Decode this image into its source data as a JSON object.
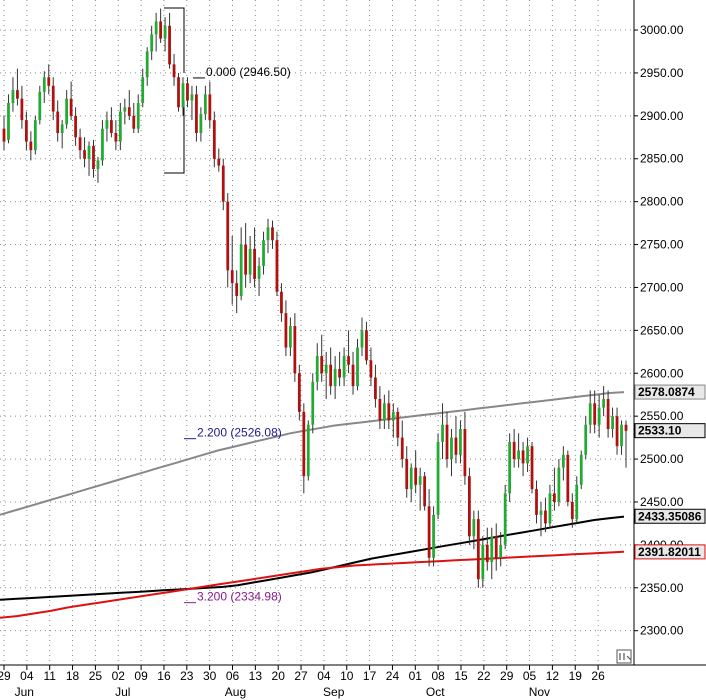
{
  "chart_data": {
    "type": "candlestick",
    "y_ticks": [
      "2300.00",
      "2350.00",
      "2400.00",
      "2450.00",
      "2500.00",
      "2550.00",
      "2600.00",
      "2650.00",
      "2700.00",
      "2750.00",
      "2800.00",
      "2850.00",
      "2900.00",
      "2950.00",
      "3000.00"
    ],
    "y_values": [
      2300,
      2350,
      2400,
      2450,
      2500,
      2550,
      2600,
      2650,
      2700,
      2750,
      2800,
      2850,
      2900,
      2950,
      3000
    ],
    "ylim": [
      2260,
      3035
    ],
    "grid": true,
    "x_day_labels": [
      "29",
      "04",
      "11",
      "18",
      "25",
      "02",
      "09",
      "16",
      "23",
      "30",
      "06",
      "13",
      "20",
      "27",
      "04",
      "10",
      "17",
      "24",
      "01",
      "08",
      "15",
      "22",
      "29",
      "05",
      "12",
      "19",
      "26"
    ],
    "x_month_labels": [
      {
        "label": "Jun",
        "week_index": 0.2
      },
      {
        "label": "Jul",
        "week_index": 4.6
      },
      {
        "label": "Aug",
        "week_index": 9.4
      },
      {
        "label": "Sep",
        "week_index": 13.7
      },
      {
        "label": "Oct",
        "week_index": 18.2
      },
      {
        "label": "Nov",
        "week_index": 22.7
      }
    ],
    "candles": [
      {
        "o": 2885,
        "h": 2900,
        "l": 2860,
        "c": 2870
      },
      {
        "o": 2872,
        "h": 2925,
        "l": 2868,
        "c": 2915
      },
      {
        "o": 2915,
        "h": 2945,
        "l": 2905,
        "c": 2930
      },
      {
        "o": 2930,
        "h": 2955,
        "l": 2912,
        "c": 2920
      },
      {
        "o": 2920,
        "h": 2935,
        "l": 2885,
        "c": 2895
      },
      {
        "o": 2895,
        "h": 2905,
        "l": 2860,
        "c": 2870
      },
      {
        "o": 2870,
        "h": 2882,
        "l": 2848,
        "c": 2860
      },
      {
        "o": 2860,
        "h": 2900,
        "l": 2855,
        "c": 2895
      },
      {
        "o": 2895,
        "h": 2935,
        "l": 2890,
        "c": 2928
      },
      {
        "o": 2928,
        "h": 2952,
        "l": 2915,
        "c": 2945
      },
      {
        "o": 2945,
        "h": 2960,
        "l": 2925,
        "c": 2935
      },
      {
        "o": 2935,
        "h": 2945,
        "l": 2895,
        "c": 2905
      },
      {
        "o": 2905,
        "h": 2918,
        "l": 2870,
        "c": 2880
      },
      {
        "o": 2880,
        "h": 2895,
        "l": 2862,
        "c": 2890
      },
      {
        "o": 2890,
        "h": 2930,
        "l": 2885,
        "c": 2920
      },
      {
        "o": 2920,
        "h": 2940,
        "l": 2895,
        "c": 2900
      },
      {
        "o": 2900,
        "h": 2910,
        "l": 2865,
        "c": 2875
      },
      {
        "o": 2875,
        "h": 2885,
        "l": 2850,
        "c": 2860
      },
      {
        "o": 2860,
        "h": 2875,
        "l": 2840,
        "c": 2850
      },
      {
        "o": 2850,
        "h": 2870,
        "l": 2830,
        "c": 2865
      },
      {
        "o": 2865,
        "h": 2872,
        "l": 2828,
        "c": 2838
      },
      {
        "o": 2838,
        "h": 2852,
        "l": 2822,
        "c": 2848
      },
      {
        "o": 2848,
        "h": 2895,
        "l": 2842,
        "c": 2885
      },
      {
        "o": 2885,
        "h": 2905,
        "l": 2870,
        "c": 2895
      },
      {
        "o": 2895,
        "h": 2910,
        "l": 2875,
        "c": 2880
      },
      {
        "o": 2880,
        "h": 2895,
        "l": 2860,
        "c": 2870
      },
      {
        "o": 2870,
        "h": 2915,
        "l": 2860,
        "c": 2905
      },
      {
        "o": 2905,
        "h": 2920,
        "l": 2890,
        "c": 2910
      },
      {
        "o": 2910,
        "h": 2930,
        "l": 2895,
        "c": 2900
      },
      {
        "o": 2900,
        "h": 2915,
        "l": 2880,
        "c": 2885
      },
      {
        "o": 2885,
        "h": 2925,
        "l": 2880,
        "c": 2915
      },
      {
        "o": 2915,
        "h": 2955,
        "l": 2910,
        "c": 2945
      },
      {
        "o": 2945,
        "h": 2980,
        "l": 2935,
        "c": 2975
      },
      {
        "o": 2975,
        "h": 3005,
        "l": 2965,
        "c": 2995
      },
      {
        "o": 2995,
        "h": 3020,
        "l": 2975,
        "c": 3010
      },
      {
        "o": 3010,
        "h": 3025,
        "l": 2985,
        "c": 2990
      },
      {
        "o": 2990,
        "h": 3015,
        "l": 2975,
        "c": 3005
      },
      {
        "o": 3005,
        "h": 3020,
        "l": 2955,
        "c": 2960
      },
      {
        "o": 2960,
        "h": 2972,
        "l": 2935,
        "c": 2945
      },
      {
        "o": 2945,
        "h": 2950,
        "l": 2905,
        "c": 2910
      },
      {
        "o": 2910,
        "h": 2945,
        "l": 2900,
        "c": 2938
      },
      {
        "o": 2938,
        "h": 2945,
        "l": 2910,
        "c": 2918
      },
      {
        "o": 2918,
        "h": 2935,
        "l": 2895,
        "c": 2925
      },
      {
        "o": 2925,
        "h": 2935,
        "l": 2870,
        "c": 2880
      },
      {
        "o": 2880,
        "h": 2910,
        "l": 2870,
        "c": 2902
      },
      {
        "o": 2902,
        "h": 2935,
        "l": 2895,
        "c": 2925
      },
      {
        "o": 2925,
        "h": 2940,
        "l": 2885,
        "c": 2895
      },
      {
        "o": 2895,
        "h": 2905,
        "l": 2840,
        "c": 2850
      },
      {
        "o": 2850,
        "h": 2862,
        "l": 2835,
        "c": 2842
      },
      {
        "o": 2842,
        "h": 2850,
        "l": 2790,
        "c": 2800
      },
      {
        "o": 2800,
        "h": 2810,
        "l": 2700,
        "c": 2720
      },
      {
        "o": 2720,
        "h": 2760,
        "l": 2680,
        "c": 2705
      },
      {
        "o": 2705,
        "h": 2720,
        "l": 2670,
        "c": 2690
      },
      {
        "o": 2690,
        "h": 2770,
        "l": 2685,
        "c": 2750
      },
      {
        "o": 2750,
        "h": 2775,
        "l": 2700,
        "c": 2715
      },
      {
        "o": 2715,
        "h": 2760,
        "l": 2705,
        "c": 2745
      },
      {
        "o": 2745,
        "h": 2770,
        "l": 2700,
        "c": 2710
      },
      {
        "o": 2710,
        "h": 2735,
        "l": 2690,
        "c": 2725
      },
      {
        "o": 2725,
        "h": 2765,
        "l": 2715,
        "c": 2755
      },
      {
        "o": 2755,
        "h": 2780,
        "l": 2740,
        "c": 2770
      },
      {
        "o": 2770,
        "h": 2778,
        "l": 2745,
        "c": 2755
      },
      {
        "o": 2755,
        "h": 2765,
        "l": 2690,
        "c": 2695
      },
      {
        "o": 2695,
        "h": 2705,
        "l": 2660,
        "c": 2670
      },
      {
        "o": 2670,
        "h": 2685,
        "l": 2620,
        "c": 2630
      },
      {
        "o": 2630,
        "h": 2665,
        "l": 2620,
        "c": 2655
      },
      {
        "o": 2655,
        "h": 2670,
        "l": 2590,
        "c": 2600
      },
      {
        "o": 2600,
        "h": 2610,
        "l": 2545,
        "c": 2555
      },
      {
        "o": 2555,
        "h": 2565,
        "l": 2460,
        "c": 2480
      },
      {
        "o": 2480,
        "h": 2545,
        "l": 2475,
        "c": 2540
      },
      {
        "o": 2540,
        "h": 2600,
        "l": 2530,
        "c": 2590
      },
      {
        "o": 2590,
        "h": 2635,
        "l": 2580,
        "c": 2620
      },
      {
        "o": 2620,
        "h": 2645,
        "l": 2590,
        "c": 2600
      },
      {
        "o": 2600,
        "h": 2625,
        "l": 2570,
        "c": 2610
      },
      {
        "o": 2610,
        "h": 2630,
        "l": 2575,
        "c": 2585
      },
      {
        "o": 2585,
        "h": 2620,
        "l": 2570,
        "c": 2605
      },
      {
        "o": 2605,
        "h": 2625,
        "l": 2585,
        "c": 2595
      },
      {
        "o": 2595,
        "h": 2630,
        "l": 2585,
        "c": 2620
      },
      {
        "o": 2620,
        "h": 2650,
        "l": 2600,
        "c": 2610
      },
      {
        "o": 2610,
        "h": 2625,
        "l": 2575,
        "c": 2585
      },
      {
        "o": 2585,
        "h": 2640,
        "l": 2580,
        "c": 2630
      },
      {
        "o": 2630,
        "h": 2665,
        "l": 2620,
        "c": 2650
      },
      {
        "o": 2650,
        "h": 2660,
        "l": 2610,
        "c": 2615
      },
      {
        "o": 2615,
        "h": 2630,
        "l": 2585,
        "c": 2595
      },
      {
        "o": 2595,
        "h": 2610,
        "l": 2560,
        "c": 2570
      },
      {
        "o": 2570,
        "h": 2585,
        "l": 2535,
        "c": 2545
      },
      {
        "o": 2545,
        "h": 2575,
        "l": 2535,
        "c": 2565
      },
      {
        "o": 2565,
        "h": 2580,
        "l": 2535,
        "c": 2545
      },
      {
        "o": 2545,
        "h": 2565,
        "l": 2525,
        "c": 2555
      },
      {
        "o": 2555,
        "h": 2560,
        "l": 2515,
        "c": 2525
      },
      {
        "o": 2525,
        "h": 2545,
        "l": 2490,
        "c": 2500
      },
      {
        "o": 2500,
        "h": 2515,
        "l": 2455,
        "c": 2465
      },
      {
        "o": 2465,
        "h": 2495,
        "l": 2450,
        "c": 2490
      },
      {
        "o": 2490,
        "h": 2510,
        "l": 2460,
        "c": 2470
      },
      {
        "o": 2470,
        "h": 2490,
        "l": 2440,
        "c": 2480
      },
      {
        "o": 2480,
        "h": 2485,
        "l": 2440,
        "c": 2445
      },
      {
        "o": 2445,
        "h": 2465,
        "l": 2375,
        "c": 2385
      },
      {
        "o": 2385,
        "h": 2445,
        "l": 2375,
        "c": 2435
      },
      {
        "o": 2435,
        "h": 2530,
        "l": 2430,
        "c": 2520
      },
      {
        "o": 2520,
        "h": 2565,
        "l": 2500,
        "c": 2540
      },
      {
        "o": 2540,
        "h": 2555,
        "l": 2490,
        "c": 2500
      },
      {
        "o": 2500,
        "h": 2535,
        "l": 2480,
        "c": 2525
      },
      {
        "o": 2525,
        "h": 2550,
        "l": 2495,
        "c": 2505
      },
      {
        "o": 2505,
        "h": 2545,
        "l": 2495,
        "c": 2535
      },
      {
        "o": 2535,
        "h": 2555,
        "l": 2470,
        "c": 2480
      },
      {
        "o": 2480,
        "h": 2490,
        "l": 2400,
        "c": 2410
      },
      {
        "o": 2410,
        "h": 2440,
        "l": 2395,
        "c": 2430
      },
      {
        "o": 2430,
        "h": 2440,
        "l": 2350,
        "c": 2360
      },
      {
        "o": 2360,
        "h": 2410,
        "l": 2350,
        "c": 2400
      },
      {
        "o": 2400,
        "h": 2420,
        "l": 2370,
        "c": 2380
      },
      {
        "o": 2380,
        "h": 2420,
        "l": 2360,
        "c": 2410
      },
      {
        "o": 2410,
        "h": 2425,
        "l": 2370,
        "c": 2385
      },
      {
        "o": 2385,
        "h": 2415,
        "l": 2375,
        "c": 2400
      },
      {
        "o": 2400,
        "h": 2470,
        "l": 2395,
        "c": 2460
      },
      {
        "o": 2460,
        "h": 2530,
        "l": 2450,
        "c": 2520
      },
      {
        "o": 2520,
        "h": 2535,
        "l": 2490,
        "c": 2500
      },
      {
        "o": 2500,
        "h": 2530,
        "l": 2490,
        "c": 2510
      },
      {
        "o": 2510,
        "h": 2520,
        "l": 2480,
        "c": 2495
      },
      {
        "o": 2495,
        "h": 2525,
        "l": 2485,
        "c": 2515
      },
      {
        "o": 2515,
        "h": 2520,
        "l": 2460,
        "c": 2465
      },
      {
        "o": 2465,
        "h": 2475,
        "l": 2425,
        "c": 2435
      },
      {
        "o": 2435,
        "h": 2450,
        "l": 2410,
        "c": 2440
      },
      {
        "o": 2440,
        "h": 2455,
        "l": 2415,
        "c": 2425
      },
      {
        "o": 2425,
        "h": 2470,
        "l": 2420,
        "c": 2460
      },
      {
        "o": 2460,
        "h": 2490,
        "l": 2440,
        "c": 2450
      },
      {
        "o": 2450,
        "h": 2500,
        "l": 2445,
        "c": 2490
      },
      {
        "o": 2490,
        "h": 2515,
        "l": 2475,
        "c": 2505
      },
      {
        "o": 2505,
        "h": 2510,
        "l": 2445,
        "c": 2450
      },
      {
        "o": 2450,
        "h": 2460,
        "l": 2420,
        "c": 2430
      },
      {
        "o": 2430,
        "h": 2480,
        "l": 2425,
        "c": 2470
      },
      {
        "o": 2470,
        "h": 2510,
        "l": 2465,
        "c": 2505
      },
      {
        "o": 2505,
        "h": 2550,
        "l": 2500,
        "c": 2540
      },
      {
        "o": 2540,
        "h": 2580,
        "l": 2530,
        "c": 2565
      },
      {
        "o": 2565,
        "h": 2580,
        "l": 2530,
        "c": 2540
      },
      {
        "o": 2540,
        "h": 2575,
        "l": 2525,
        "c": 2560
      },
      {
        "o": 2560,
        "h": 2585,
        "l": 2550,
        "c": 2570
      },
      {
        "o": 2570,
        "h": 2580,
        "l": 2525,
        "c": 2535
      },
      {
        "o": 2535,
        "h": 2560,
        "l": 2525,
        "c": 2550
      },
      {
        "o": 2550,
        "h": 2560,
        "l": 2505,
        "c": 2515
      },
      {
        "o": 2515,
        "h": 2545,
        "l": 2505,
        "c": 2540
      },
      {
        "o": 2540,
        "h": 2545,
        "l": 2490,
        "c": 2533
      }
    ],
    "series": [
      {
        "color": "#888888",
        "values": [
          2435,
          2440,
          2445,
          2450,
          2455,
          2460,
          2465,
          2470,
          2475,
          2480,
          2485,
          2490,
          2495,
          2500,
          2505,
          2510,
          2514,
          2518,
          2522,
          2526,
          2530,
          2533,
          2536,
          2539,
          2541,
          2543,
          2545,
          2547,
          2549,
          2551,
          2553,
          2555,
          2557,
          2559,
          2561,
          2563,
          2565,
          2567,
          2569,
          2571,
          2573,
          2575,
          2577,
          2578
        ]
      },
      {
        "color": "#000000",
        "values": [
          2336,
          2337,
          2338,
          2339,
          2340,
          2341,
          2342,
          2343,
          2344,
          2345,
          2346,
          2347,
          2348,
          2349,
          2350,
          2351,
          2353,
          2356,
          2359,
          2362,
          2365,
          2368,
          2372,
          2376,
          2380,
          2384,
          2387,
          2390,
          2393,
          2396,
          2399,
          2402,
          2405,
          2408,
          2411,
          2414,
          2417,
          2420,
          2423,
          2426,
          2429,
          2431,
          2433
        ]
      },
      {
        "color": "#dd1111",
        "values": [
          2315,
          2317,
          2320,
          2323,
          2327,
          2330,
          2333,
          2336,
          2339,
          2342,
          2345,
          2348,
          2351,
          2354,
          2357,
          2360,
          2363,
          2366,
          2369,
          2372,
          2374,
          2376,
          2377,
          2378,
          2379,
          2380,
          2381,
          2382,
          2383,
          2384,
          2385,
          2386,
          2387,
          2388,
          2389,
          2390,
          2391,
          2392
        ]
      }
    ],
    "fib_levels": [
      {
        "label": "0.000 (2946.50)",
        "value": 2946.5,
        "color": "#000000"
      },
      {
        "label": "2.200 (2526.08)",
        "value": 2526.08,
        "color": "#1a1a8c"
      },
      {
        "label": "3.200 (2334.98)",
        "value": 2334.98,
        "color": "#8a1a8a"
      }
    ],
    "price_tags": [
      {
        "label": "2578.0874",
        "value": 2578.0874,
        "color": "#888888"
      },
      {
        "label": "2533.10",
        "value": 2533.1,
        "color": "#000000"
      },
      {
        "label": "2433.35086",
        "value": 2433.35086,
        "color": "#000000"
      },
      {
        "label": "2391.82011",
        "value": 2391.82011,
        "color": "#dd1111"
      }
    ],
    "colors": {
      "up": "#22aa33",
      "down": "#b01010",
      "wick": "#333333"
    }
  }
}
